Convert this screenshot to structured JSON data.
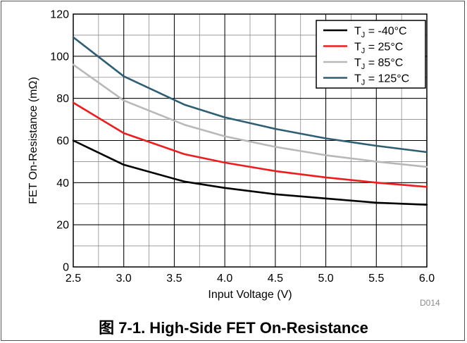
{
  "chart_data": {
    "type": "line",
    "title": "",
    "xlabel": "Input Voltage (V)",
    "ylabel": "FET On-Resistance (mΩ)",
    "xlim": [
      2.5,
      6.0
    ],
    "ylim": [
      0,
      120
    ],
    "x_ticks": [
      "2.5",
      "3.0",
      "3.5",
      "4.0",
      "4.5",
      "5.0",
      "5.5",
      "6.0"
    ],
    "y_ticks": [
      "0",
      "20",
      "40",
      "60",
      "80",
      "100",
      "120"
    ],
    "grid": true,
    "grid_minor_x": 0.25,
    "grid_minor_y": 10,
    "legend_position": "top-right",
    "x": [
      2.5,
      3.0,
      3.6,
      4.0,
      4.5,
      5.0,
      5.5,
      6.0
    ],
    "series": [
      {
        "name_prefix": "T",
        "name_sub": "J",
        "name_suffix": " = -40°C",
        "color": "#000000",
        "values": [
          60,
          48.5,
          40.5,
          37.5,
          34.5,
          32.5,
          30.5,
          29.5
        ]
      },
      {
        "name_prefix": "T",
        "name_sub": "J",
        "name_suffix": " =  25°C",
        "color": "#ee1c1c",
        "values": [
          78,
          63.5,
          53.5,
          49.5,
          45.5,
          42.5,
          40,
          38
        ]
      },
      {
        "name_prefix": "T",
        "name_sub": "J",
        "name_suffix": " =  85°C",
        "color": "#b8b8b8",
        "values": [
          96,
          79,
          67.5,
          62,
          57,
          53,
          50,
          47.5
        ]
      },
      {
        "name_prefix": "T",
        "name_sub": "J",
        "name_suffix": " =  125°C",
        "color": "#2e5e73",
        "values": [
          109,
          90.5,
          77,
          71,
          65.5,
          61,
          57.5,
          54.5
        ]
      }
    ]
  },
  "caption": "图 7-1. High-Side FET On-Resistance",
  "figure_code": "D014"
}
